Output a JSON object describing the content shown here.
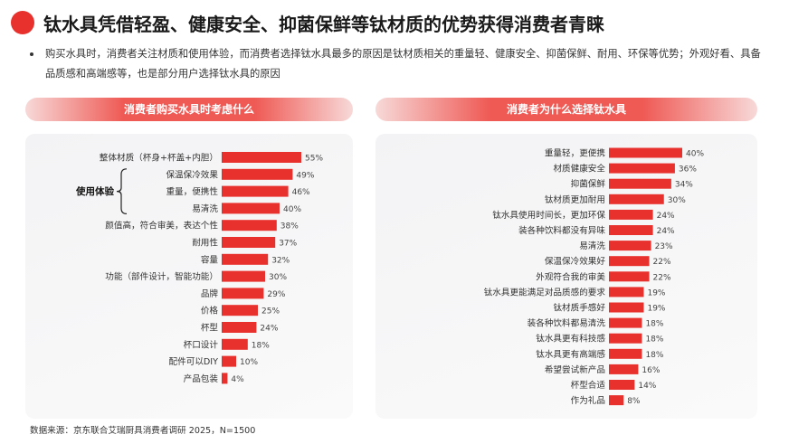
{
  "title": "钛水具凭借轻盈、健康安全、抑菌保鲜等钛材质的优势获得消费者青睐",
  "description": "购买水具时，消费者关注材质和使用体验，而消费者选择钛水具最多的原因是钛材质相关的重量轻、健康安全、抑菌保鲜、耐用、环保等优势；外观好看、具备品质感和高端感等，也是部分用户选择钛水具的原因",
  "source": "数据来源：京东联合艾瑞厨具消费者调研 2025，N=1500",
  "accent_color": "#e8312d",
  "bar_color": "#e8312d",
  "chart_data": [
    {
      "type": "bar",
      "orientation": "horizontal",
      "title": "消费者购买水具时考虑什么",
      "bracket_label": "使用体验",
      "bracket_covers": [
        "保温保冷效果",
        "重量，便携性",
        "易清洗"
      ],
      "categories": [
        "整体材质（杯身+杯盖+内胆）",
        "保温保冷效果",
        "重量，便携性",
        "易清洗",
        "颜值高，符合审美，表达个性",
        "耐用性",
        "容量",
        "功能（部件设计，智能功能）",
        "品牌",
        "价格",
        "杯型",
        "杯口设计",
        "配件可以DIY",
        "产品包装"
      ],
      "values": [
        55,
        49,
        46,
        40,
        38,
        37,
        32,
        30,
        29,
        25,
        24,
        18,
        10,
        4
      ],
      "value_suffix": "%",
      "xlim": [
        0,
        60
      ]
    },
    {
      "type": "bar",
      "orientation": "horizontal",
      "title": "消费者为什么选择钛水具",
      "categories": [
        "重量轻，更便携",
        "材质健康安全",
        "抑菌保鲜",
        "钛材质更加耐用",
        "钛水具使用时间长，更加环保",
        "装各种饮料都没有异味",
        "易清洗",
        "保温保冷效果好",
        "外观符合我的审美",
        "钛水具更能满足对品质感的要求",
        "钛材质手感好",
        "装各种饮料都易清洗",
        "钛水具更有科技感",
        "钛水具更有高端感",
        "希望尝试新产品",
        "杯型合适",
        "作为礼品"
      ],
      "values": [
        40,
        36,
        34,
        30,
        24,
        24,
        23,
        22,
        22,
        19,
        19,
        18,
        18,
        18,
        16,
        14,
        8
      ],
      "value_suffix": "%",
      "xlim": [
        0,
        45
      ]
    }
  ]
}
